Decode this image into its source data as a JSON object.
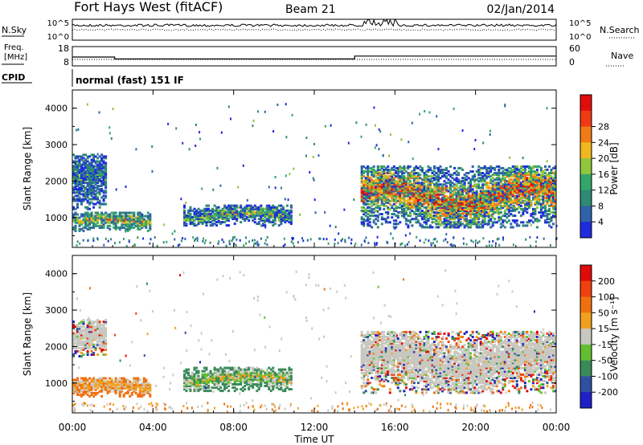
{
  "header": {
    "station": "Fort Hays West (fitACF)",
    "beam": "Beam 21",
    "date": "02/Jan/2014",
    "cpid_value": "normal (fast) 151 IF"
  },
  "status_panels": {
    "noise": {
      "left_label": "N.Sky",
      "left_ticks": [
        "10^5",
        "10^0"
      ],
      "right_ticks": [
        "10^5",
        "10^0"
      ],
      "right_label": "N.Search",
      "right_legend_style": "dotted"
    },
    "freq": {
      "left_label_1": "Freq.",
      "left_label_2": "[MHz]",
      "left_ticks": [
        "18",
        "8"
      ],
      "right_ticks": [
        "60",
        "0"
      ],
      "right_label": "Nave",
      "right_legend_style": "dotted",
      "freq_steps_hours": [
        0,
        2.1,
        14.0,
        24
      ],
      "freq_levels_mhz": [
        11.0,
        10.0,
        11.5
      ]
    },
    "cpid_label": "CPID"
  },
  "chart_data": [
    {
      "type": "heatmap",
      "name": "power",
      "ylabel": "Slant Range [km]",
      "xlabel": "",
      "xlim_hours": [
        0,
        24
      ],
      "ylim_km": [
        180,
        4500
      ],
      "yticks": [
        "1000",
        "2000",
        "3000",
        "4000"
      ],
      "colorbar": {
        "label": "Power [dB]",
        "ticks": [
          "4",
          "8",
          "12",
          "16",
          "20",
          "24",
          "28"
        ],
        "colors": [
          "#1f2bdc",
          "#2f62a8",
          "#2e8a72",
          "#34a56a",
          "#8fc63c",
          "#f0b81e",
          "#f07a16",
          "#ef3a14",
          "#e10c0c"
        ]
      },
      "echo_regions": [
        {
          "t0": 0.0,
          "t1": 1.7,
          "r0": 1200,
          "r1": 2700,
          "level": "low-mid"
        },
        {
          "t0": 0.0,
          "t1": 3.9,
          "r0": 600,
          "r1": 1100,
          "level": "mid-high"
        },
        {
          "t0": 5.5,
          "t1": 10.8,
          "r0": 750,
          "r1": 1300,
          "level": "mid"
        },
        {
          "t0": 14.3,
          "t1": 24.0,
          "r0": 700,
          "r1": 2400,
          "level": "high"
        }
      ]
    },
    {
      "type": "heatmap",
      "name": "velocity",
      "ylabel": "Slant Range [km]",
      "xlabel": "Time UT",
      "xlim_hours": [
        0,
        24
      ],
      "ylim_km": [
        180,
        4500
      ],
      "xticks": [
        "00:00",
        "04:00",
        "08:00",
        "12:00",
        "16:00",
        "20:00",
        "00:00"
      ],
      "yticks": [
        "1000",
        "2000",
        "3000",
        "4000"
      ],
      "colorbar": {
        "label": "Velocity [m s⁻¹]",
        "ticks": [
          "200",
          "100",
          "50",
          "15",
          "-15",
          "-50",
          "-100",
          "-200"
        ],
        "colors": [
          "#2020c8",
          "#3050a0",
          "#3a8a5a",
          "#62c030",
          "#c8c8c0",
          "#f0a020",
          "#f07010",
          "#f04010",
          "#e00a0a"
        ]
      },
      "echo_regions": [
        {
          "t0": 0.0,
          "t1": 1.7,
          "r0": 1700,
          "r1": 2700,
          "level": "gray"
        },
        {
          "t0": 0.0,
          "t1": 3.9,
          "r0": 600,
          "r1": 1100,
          "level": "orange"
        },
        {
          "t0": 5.5,
          "t1": 10.8,
          "r0": 750,
          "r1": 1400,
          "level": "mixed-green-orange"
        },
        {
          "t0": 14.3,
          "t1": 24.0,
          "r0": 700,
          "r1": 2400,
          "level": "gray"
        }
      ]
    }
  ]
}
